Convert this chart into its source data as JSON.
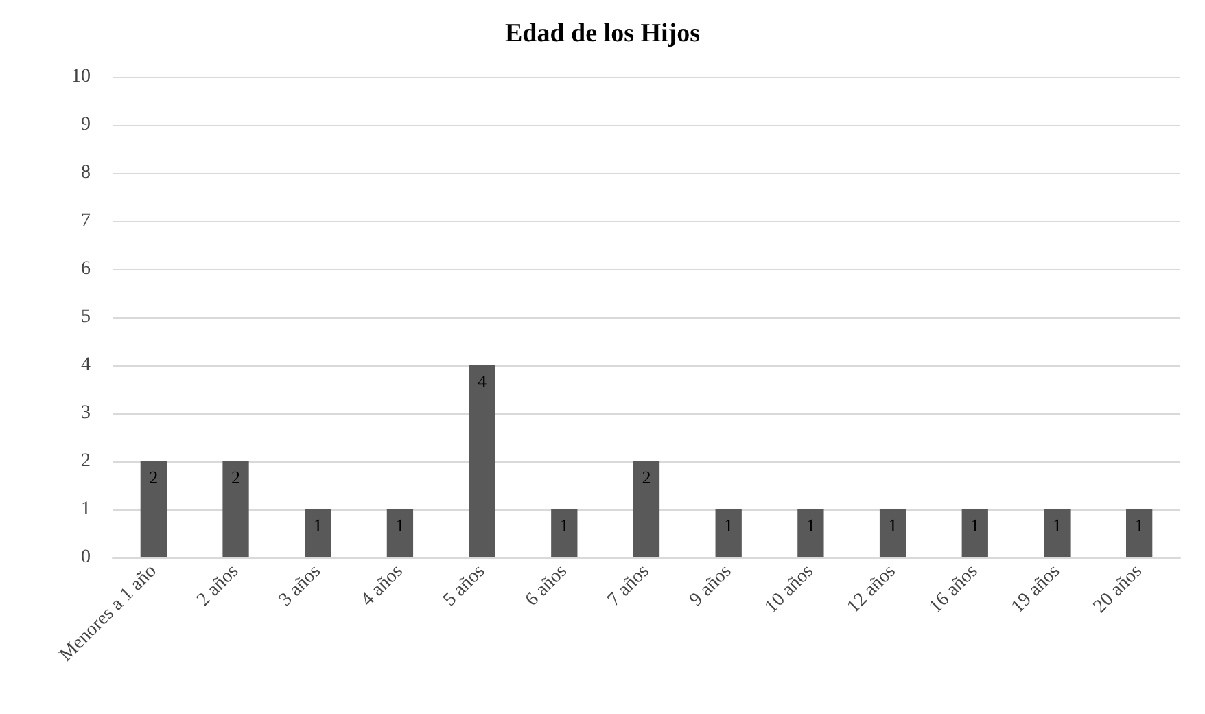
{
  "chart_data": {
    "type": "bar",
    "title": "Edad de los Hijos",
    "categories": [
      "Menores a 1 año",
      "2 años",
      "3 años",
      "4 años",
      "5 años",
      "6 años",
      "7 años",
      "9 años",
      "10 años",
      "12 años",
      "16 años",
      "19 años",
      "20 años"
    ],
    "values": [
      2,
      2,
      1,
      1,
      4,
      1,
      2,
      1,
      1,
      1,
      1,
      1,
      1
    ],
    "color": "#595959",
    "ylim": [
      0,
      10
    ],
    "yticks": [
      0,
      1,
      2,
      3,
      4,
      5,
      6,
      7,
      8,
      9,
      10
    ],
    "grid": "y",
    "data_labels": true
  }
}
